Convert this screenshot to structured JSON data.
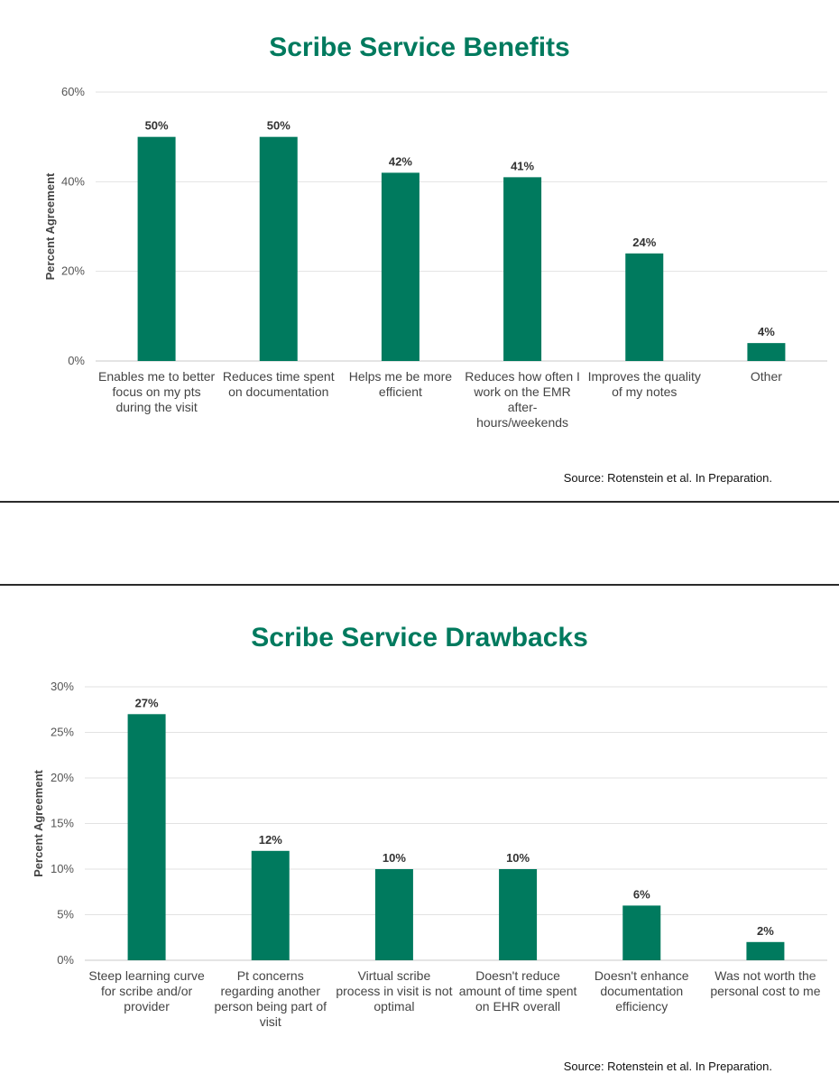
{
  "chart_data": [
    {
      "type": "bar",
      "title": "Scribe Service Benefits",
      "ylabel": "Percent Agreement",
      "xlabel": "",
      "ylim": [
        0,
        60
      ],
      "yticks": [
        "0%",
        "20%",
        "40%",
        "60%"
      ],
      "ytick_values": [
        0,
        20,
        40,
        60
      ],
      "categories": [
        [
          "Enables me to better",
          "focus on my pts",
          "during the visit"
        ],
        [
          "Reduces time spent",
          "on documentation"
        ],
        [
          "Helps me be more",
          "efficient"
        ],
        [
          "Reduces how often I",
          "work on the EMR",
          "after-",
          "hours/weekends"
        ],
        [
          "Improves the quality",
          "of my notes"
        ],
        [
          "Other"
        ]
      ],
      "values": [
        50,
        50,
        42,
        41,
        24,
        4
      ],
      "data_labels": [
        "50%",
        "50%",
        "42%",
        "41%",
        "24%",
        "4%"
      ],
      "bar_color": "#007a5e",
      "grid": true,
      "source": "Source: Rotenstein et al. In Preparation."
    },
    {
      "type": "bar",
      "title": "Scribe Service Drawbacks",
      "ylabel": "Percent Agreement",
      "xlabel": "",
      "ylim": [
        0,
        30
      ],
      "yticks": [
        "0%",
        "5%",
        "10%",
        "15%",
        "20%",
        "25%",
        "30%"
      ],
      "ytick_values": [
        0,
        5,
        10,
        15,
        20,
        25,
        30
      ],
      "categories": [
        [
          "Steep learning curve",
          "for scribe and/or",
          "provider"
        ],
        [
          "Pt concerns",
          "regarding another",
          "person being part of",
          "visit"
        ],
        [
          "Virtual scribe",
          "process in visit is not",
          "optimal"
        ],
        [
          "Doesn't reduce",
          "amount of time spent",
          "on EHR overall"
        ],
        [
          "Doesn't enhance",
          "documentation",
          "efficiency"
        ],
        [
          "Was not worth the",
          "personal cost to me"
        ]
      ],
      "values": [
        27,
        12,
        10,
        10,
        6,
        2
      ],
      "data_labels": [
        "27%",
        "12%",
        "10%",
        "10%",
        "6%",
        "2%"
      ],
      "bar_color": "#007a5e",
      "grid": true,
      "source": "Source: Rotenstein et al. In Preparation."
    }
  ]
}
